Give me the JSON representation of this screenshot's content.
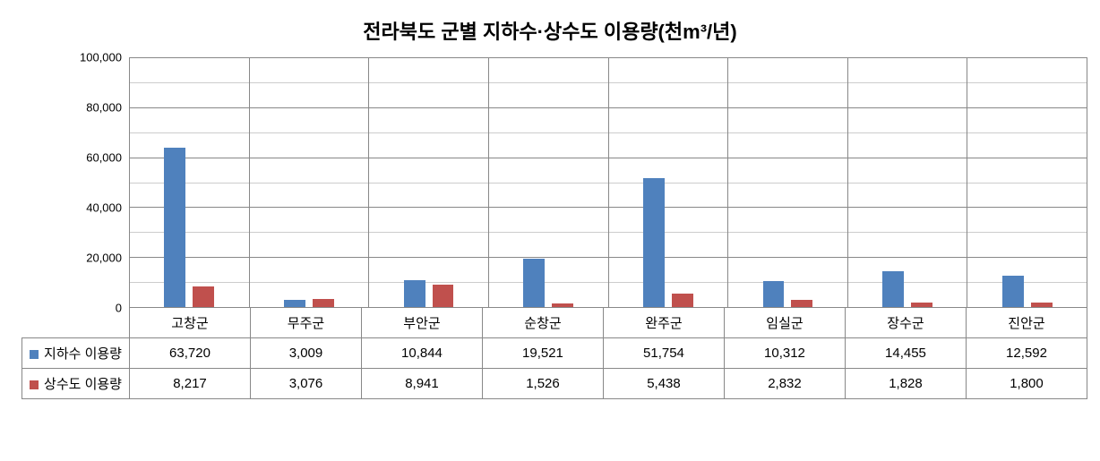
{
  "chart": {
    "type": "bar",
    "title": "전라북도 군별 지하수·상수도 이용량(천m³/년)",
    "title_fontsize": 22,
    "title_fontweight": "bold",
    "background_color": "#ffffff",
    "plot_border_color": "#888888",
    "grid_major_color": "#888888",
    "grid_minor_color": "#cccccc",
    "categories": [
      "고창군",
      "무주군",
      "부안군",
      "순창군",
      "완주군",
      "임실군",
      "장수군",
      "진안군"
    ],
    "series": [
      {
        "name": "지하수 이용량",
        "color": "#4f81bd",
        "values": [
          63720,
          3009,
          10844,
          19521,
          51754,
          10312,
          14455,
          12592
        ]
      },
      {
        "name": "상수도 이용량",
        "color": "#c0504d",
        "values": [
          8217,
          3076,
          8941,
          1526,
          5438,
          2832,
          1828,
          1800
        ]
      }
    ],
    "y_axis": {
      "min": 0,
      "max": 100000,
      "tick_step": 20000,
      "minor_tick_step": 10000,
      "tick_labels": [
        "0",
        "20,000",
        "40,000",
        "60,000",
        "80,000",
        "100,000"
      ],
      "tick_fontsize": 13
    },
    "bar_width_pct": 18,
    "category_fontsize": 15,
    "table_fontsize": 15,
    "display_values": {
      "series0": [
        "63,720",
        "3,009",
        "10,844",
        "19,521",
        "51,754",
        "10,312",
        "14,455",
        "12,592"
      ],
      "series1": [
        "8,217",
        "3,076",
        "8,941",
        "1,526",
        "5,438",
        "2,832",
        "1,828",
        "1,800"
      ]
    }
  }
}
